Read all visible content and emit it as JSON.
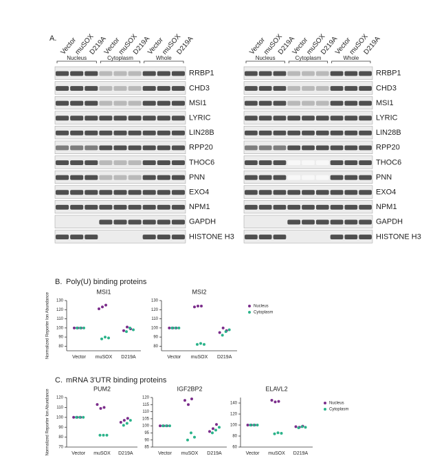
{
  "panel_a": {
    "label": "A.",
    "blots": [
      {
        "groups": [
          "Nucleus",
          "Cytoplasm",
          "Whole"
        ],
        "lanes": [
          "Vector",
          "muSOX",
          "D219A",
          "Vector",
          "muSOX",
          "D219A",
          "Vector",
          "muSOX",
          "D219A"
        ],
        "proteins": [
          "RRBP1",
          "CHD3",
          "MSI1",
          "LYRIC",
          "LIN28B",
          "RPP20",
          "THOC6",
          "PNN",
          "EXO4",
          "NPM1",
          "GAPDH",
          "HISTONE H3"
        ]
      },
      {
        "groups": [
          "Nucleus",
          "Cytoplasm",
          "Whole"
        ],
        "lanes": [
          "Vector",
          "muSOX",
          "D219A",
          "Vector",
          "muSOX",
          "D219A",
          "Vector",
          "muSOX",
          "D219A"
        ],
        "proteins": [
          "RRBP1",
          "CHD3",
          "MSI1",
          "LYRIC",
          "LIN28B",
          "RPP20",
          "THOC6",
          "PNN",
          "EXO4",
          "NPM1",
          "GAPDH",
          "HISTONE H3"
        ]
      }
    ]
  },
  "panel_b": {
    "label": "B.",
    "title": "Poly(U) binding proteins"
  },
  "panel_c": {
    "label": "C.",
    "title": "mRNA 3'UTR binding proteins"
  },
  "chart_data": [
    {
      "type": "dot",
      "title": "MSI1",
      "ylabel": "Normalized Reporter Ion Abundance",
      "categories": [
        "Vector",
        "muSOX",
        "D219A"
      ],
      "series": [
        {
          "name": "Nucleus",
          "color": "#7b2d8b",
          "values": [
            [
              100,
              100,
              100
            ],
            [
              121,
              123,
              125
            ],
            [
              97,
              101,
              99
            ]
          ]
        },
        {
          "name": "Cytoplasm",
          "color": "#2bb38a",
          "values": [
            [
              100,
              100,
              100
            ],
            [
              88,
              90,
              89
            ],
            [
              96,
              100,
              98
            ]
          ]
        }
      ],
      "ylim": [
        75,
        130
      ],
      "yticks": [
        80,
        90,
        100,
        110,
        120,
        130
      ],
      "legend": false
    },
    {
      "type": "dot",
      "title": "MSI2",
      "categories": [
        "Vector",
        "muSOX",
        "D219A"
      ],
      "series": [
        {
          "name": "Nucleus",
          "color": "#7b2d8b",
          "values": [
            [
              100,
              100,
              100
            ],
            [
              123,
              124,
              124
            ],
            [
              95,
              100,
              97
            ]
          ]
        },
        {
          "name": "Cytoplasm",
          "color": "#2bb38a",
          "values": [
            [
              100,
              100,
              100
            ],
            [
              82,
              83,
              82
            ],
            [
              92,
              96,
              98
            ]
          ]
        }
      ],
      "ylim": [
        75,
        130
      ],
      "yticks": [
        80,
        90,
        100,
        110,
        120,
        130
      ],
      "legend": true
    },
    {
      "type": "dot",
      "title": "PUM2",
      "ylabel": "Normalized Reporter Ion Abundance",
      "categories": [
        "Vector",
        "muSOX",
        "D219A"
      ],
      "series": [
        {
          "name": "Nucleus",
          "color": "#7b2d8b",
          "values": [
            [
              100,
              100,
              100
            ],
            [
              113,
              109,
              110
            ],
            [
              95,
              97,
              99
            ]
          ]
        },
        {
          "name": "Cytoplasm",
          "color": "#2bb38a",
          "values": [
            [
              100,
              100,
              100
            ],
            [
              82,
              82,
              82
            ],
            [
              92,
              94,
              97
            ]
          ]
        }
      ],
      "ylim": [
        70,
        120
      ],
      "yticks": [
        70,
        80,
        90,
        100,
        110,
        120
      ],
      "legend": false
    },
    {
      "type": "dot",
      "title": "IGF2BP2",
      "categories": [
        "Vector",
        "muSOX",
        "D219A"
      ],
      "series": [
        {
          "name": "Nucleus",
          "color": "#7b2d8b",
          "values": [
            [
              100,
              100,
              100
            ],
            [
              118,
              115,
              119
            ],
            [
              96,
              98,
              101
            ]
          ]
        },
        {
          "name": "Cytoplasm",
          "color": "#2bb38a",
          "values": [
            [
              100,
              100,
              100
            ],
            [
              90,
              95,
              92
            ],
            [
              95,
              97,
              99
            ]
          ]
        }
      ],
      "ylim": [
        85,
        120
      ],
      "yticks": [
        85,
        90,
        95,
        100,
        105,
        110,
        115,
        120
      ],
      "legend": false
    },
    {
      "type": "dot",
      "title": "ELAVL2",
      "categories": [
        "Vector",
        "muSOX",
        "D219A"
      ],
      "series": [
        {
          "name": "Nucleus",
          "color": "#7b2d8b",
          "values": [
            [
              100,
              100,
              100
            ],
            [
              145,
              142,
              143
            ],
            [
              97,
              96,
              98
            ]
          ]
        },
        {
          "name": "Cytoplasm",
          "color": "#2bb38a",
          "values": [
            [
              100,
              100,
              100
            ],
            [
              84,
              86,
              85
            ],
            [
              95,
              97,
              96
            ]
          ]
        }
      ],
      "ylim": [
        60,
        150
      ],
      "yticks": [
        60,
        80,
        100,
        120,
        140
      ],
      "legend": true
    }
  ]
}
